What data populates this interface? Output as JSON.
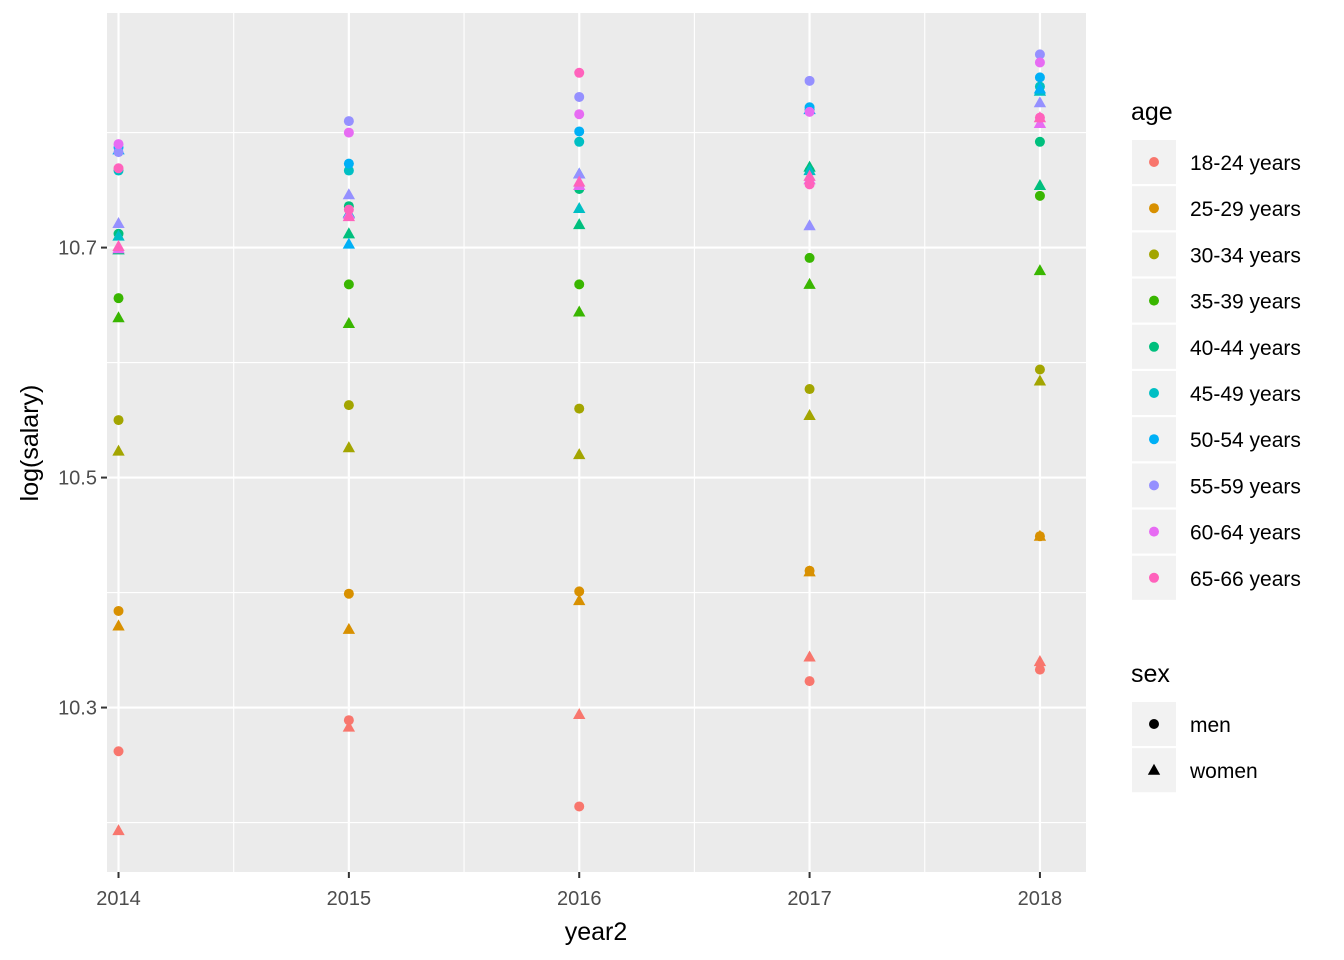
{
  "chart_data": {
    "type": "scatter",
    "xlabel": "year2",
    "ylabel": "log(salary)",
    "x": [
      2014,
      2015,
      2016,
      2017,
      2018
    ],
    "xlim": [
      2013.95,
      2018.2
    ],
    "ylim": [
      10.157,
      10.904
    ],
    "y_ticks": [
      10.3,
      10.5,
      10.7
    ],
    "y_tick_labels": [
      "10.3",
      "10.5",
      "10.7"
    ],
    "grid": true,
    "legend_position": "right",
    "legends": {
      "color": {
        "title": "age",
        "entries": [
          "18-24 years",
          "25-29 years",
          "30-34 years",
          "35-39 years",
          "40-44 years",
          "45-49 years",
          "50-54 years",
          "55-59 years",
          "60-64 years",
          "65-66 years"
        ],
        "colors": [
          "#F8766D",
          "#D89000",
          "#A3A500",
          "#39B600",
          "#00BF7D",
          "#00BFC4",
          "#00B0F6",
          "#9590FF",
          "#E76BF3",
          "#FF62BC"
        ]
      },
      "shape": {
        "title": "sex",
        "entries": [
          "men",
          "women"
        ],
        "shapes": [
          "circle",
          "triangle"
        ]
      }
    },
    "series": [
      {
        "age": "18-24 years",
        "sex": "men",
        "values": [
          10.262,
          10.289,
          10.214,
          10.323,
          10.333
        ]
      },
      {
        "age": "18-24 years",
        "sex": "women",
        "values": [
          10.193,
          10.283,
          10.294,
          10.344,
          10.34
        ]
      },
      {
        "age": "25-29 years",
        "sex": "men",
        "values": [
          10.384,
          10.399,
          10.401,
          10.419,
          10.449
        ]
      },
      {
        "age": "25-29 years",
        "sex": "women",
        "values": [
          10.371,
          10.368,
          10.393,
          10.418,
          10.449
        ]
      },
      {
        "age": "30-34 years",
        "sex": "men",
        "values": [
          10.55,
          10.563,
          10.56,
          10.577,
          10.594
        ]
      },
      {
        "age": "30-34 years",
        "sex": "women",
        "values": [
          10.523,
          10.526,
          10.52,
          10.554,
          10.584
        ]
      },
      {
        "age": "35-39 years",
        "sex": "men",
        "values": [
          10.656,
          10.668,
          10.668,
          10.691,
          10.745
        ]
      },
      {
        "age": "35-39 years",
        "sex": "women",
        "values": [
          10.639,
          10.634,
          10.644,
          10.668,
          10.68
        ]
      },
      {
        "age": "40-44 years",
        "sex": "men",
        "values": [
          10.712,
          10.736,
          10.751,
          10.767,
          10.792
        ]
      },
      {
        "age": "40-44 years",
        "sex": "women",
        "values": [
          10.698,
          10.712,
          10.72,
          10.77,
          10.754
        ]
      },
      {
        "age": "45-49 years",
        "sex": "men",
        "values": [
          10.767,
          10.767,
          10.792,
          10.82,
          10.84
        ]
      },
      {
        "age": "45-49 years",
        "sex": "women",
        "values": [
          10.71,
          10.73,
          10.734,
          10.767,
          10.836
        ]
      },
      {
        "age": "50-54 years",
        "sex": "men",
        "values": [
          10.787,
          10.773,
          10.801,
          10.822,
          10.848
        ]
      },
      {
        "age": "50-54 years",
        "sex": "women",
        "values": [
          10.785,
          10.703,
          10.764,
          10.82,
          10.838
        ]
      },
      {
        "age": "55-59 years",
        "sex": "men",
        "values": [
          10.783,
          10.81,
          10.831,
          10.845,
          10.868
        ]
      },
      {
        "age": "55-59 years",
        "sex": "women",
        "values": [
          10.721,
          10.746,
          10.764,
          10.719,
          10.826
        ]
      },
      {
        "age": "60-64 years",
        "sex": "men",
        "values": [
          10.79,
          10.8,
          10.816,
          10.818,
          10.861
        ]
      },
      {
        "age": "60-64 years",
        "sex": "women",
        "values": [
          10.699,
          10.729,
          10.754,
          10.759,
          10.808
        ]
      },
      {
        "age": "65-66 years",
        "sex": "men",
        "values": [
          10.769,
          10.733,
          10.852,
          10.755,
          10.813
        ]
      },
      {
        "age": "65-66 years",
        "sex": "women",
        "values": [
          10.701,
          10.727,
          10.757,
          10.762,
          10.813
        ]
      }
    ]
  }
}
